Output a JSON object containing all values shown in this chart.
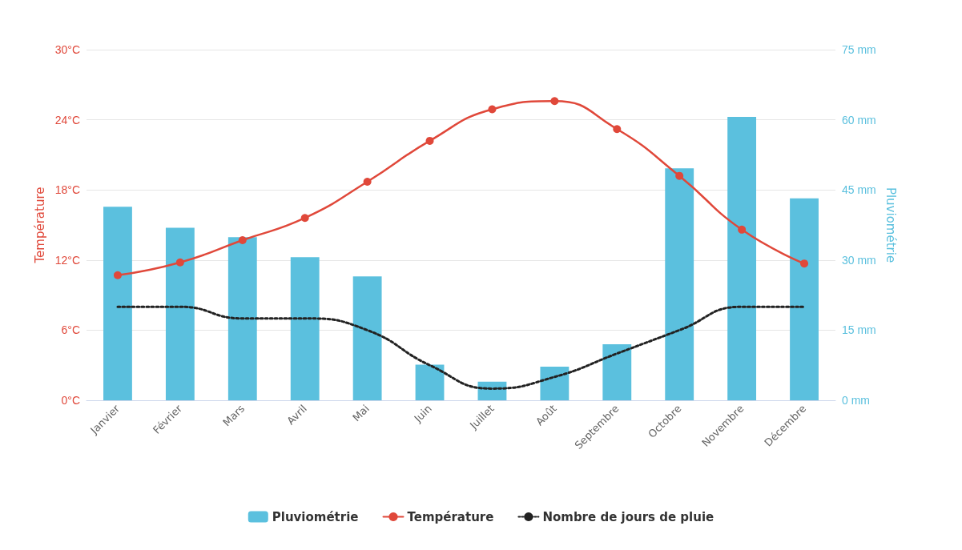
{
  "chart_data": {
    "type": "bar",
    "categories": [
      "Janvier",
      "Février",
      "Mars",
      "Avril",
      "Mai",
      "Juin",
      "Juillet",
      "Août",
      "Septembre",
      "Octobre",
      "Novembre",
      "Décembre"
    ],
    "series": [
      {
        "name": "Pluviométrie",
        "axis": "y2",
        "color": "#5bc0de",
        "values": [
          41.4,
          36.9,
          34.9,
          30.6,
          26.5,
          7.6,
          4,
          7.2,
          12,
          49.6,
          60.6,
          43.2
        ]
      },
      {
        "name": "Température",
        "type": "line",
        "color": "#e0483a",
        "marker": "circle",
        "line_style": "solid",
        "values": [
          10.7,
          11.8,
          13.7,
          15.6,
          18.7,
          22.2,
          24.9,
          25.6,
          23.2,
          19.2,
          14.6,
          11.7
        ]
      },
      {
        "name": "Nombre de jours de pluie",
        "type": "line",
        "color": "#222222",
        "marker": "none",
        "line_style": "dotted",
        "values": [
          8,
          8,
          7,
          7,
          6,
          3,
          1,
          2,
          4,
          6,
          8,
          8
        ]
      }
    ],
    "ylabel": "Température",
    "y2label": "Pluviométrie",
    "ylim": [
      0,
      30
    ],
    "yticks": [
      {
        "value": 0,
        "label": "0°C"
      },
      {
        "value": 6,
        "label": "6°C"
      },
      {
        "value": 12,
        "label": "12°C"
      },
      {
        "value": 18,
        "label": "18°C"
      },
      {
        "value": 24,
        "label": "24°C"
      },
      {
        "value": 30,
        "label": "30°C"
      }
    ],
    "y2lim": [
      0,
      75
    ],
    "y2ticks": [
      {
        "value": 0,
        "label": "0 mm"
      },
      {
        "value": 15,
        "label": "15 mm"
      },
      {
        "value": 30,
        "label": "30 mm"
      },
      {
        "value": 45,
        "label": "45 mm"
      },
      {
        "value": 60,
        "label": "60 mm"
      },
      {
        "value": 75,
        "label": "75 mm"
      }
    ],
    "grid": "y",
    "legend": "bottom"
  }
}
